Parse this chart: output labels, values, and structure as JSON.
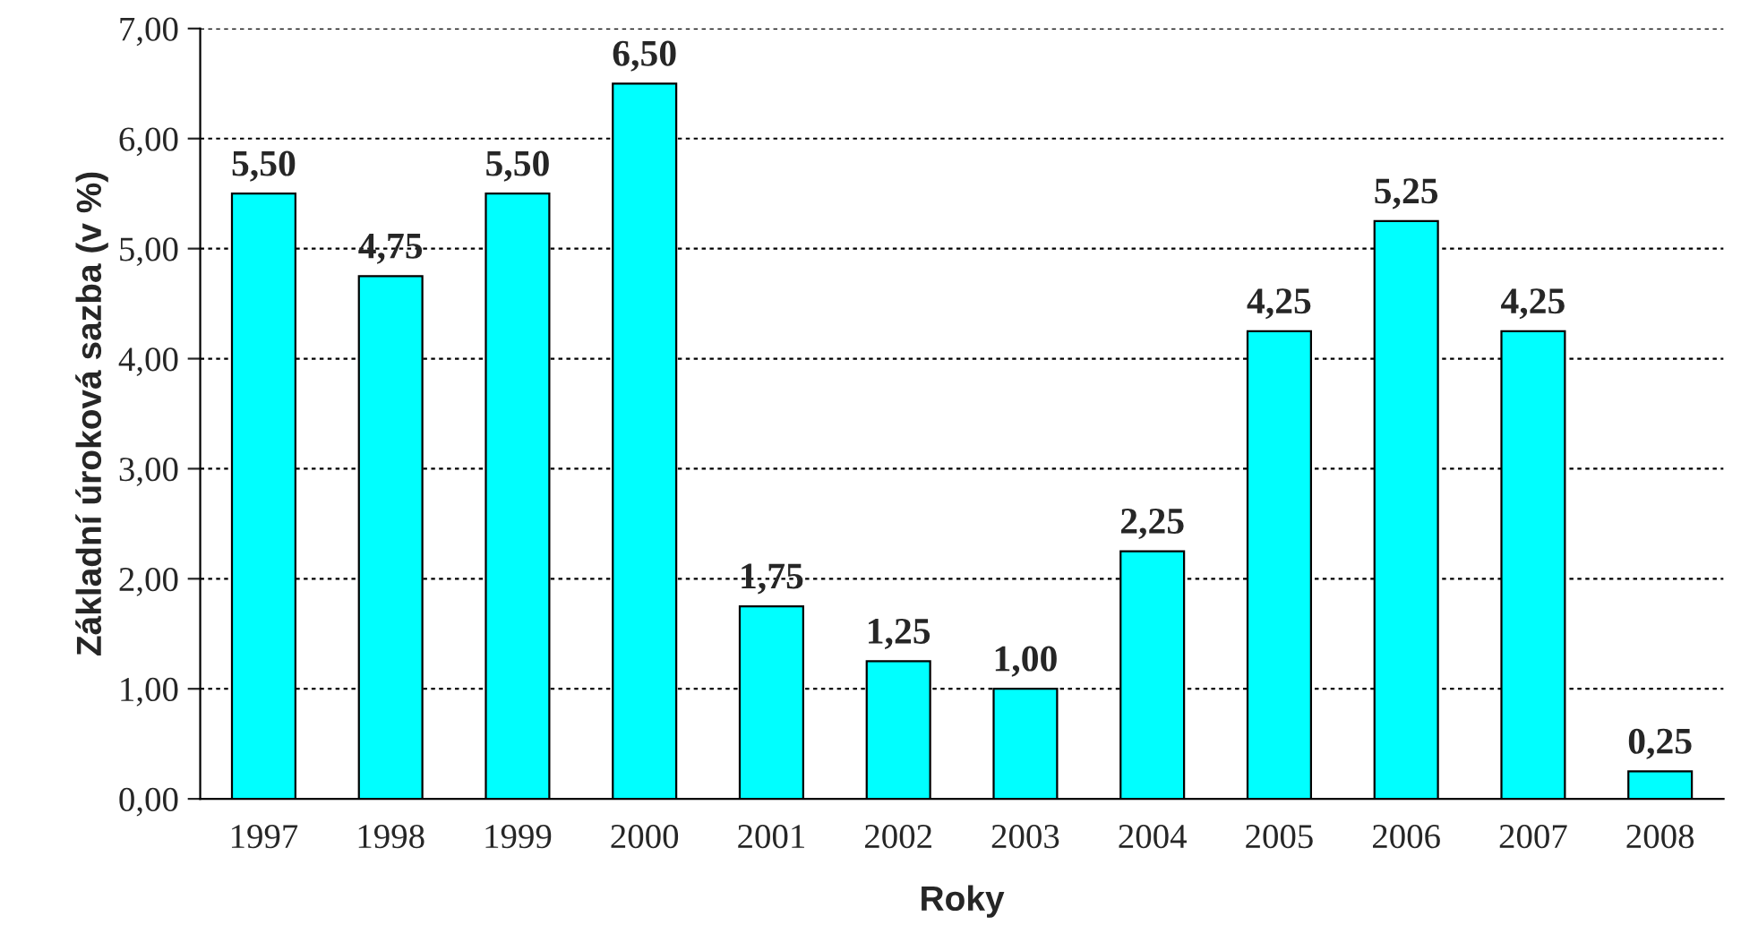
{
  "chart_data": {
    "type": "bar",
    "xlabel": "Roky",
    "ylabel": "Základní úroková sazba (v %)",
    "categories": [
      "1997",
      "1998",
      "1999",
      "2000",
      "2001",
      "2002",
      "2003",
      "2004",
      "2005",
      "2006",
      "2007",
      "2008"
    ],
    "values": [
      5.5,
      4.75,
      5.5,
      6.5,
      1.75,
      1.25,
      1.0,
      2.25,
      4.25,
      5.25,
      4.25,
      0.25
    ],
    "value_labels": [
      "5,50",
      "4,75",
      "5,50",
      "6,50",
      "1,75",
      "1,25",
      "1,00",
      "2,25",
      "4,25",
      "5,25",
      "4,25",
      "0,25"
    ],
    "color": "#00ffff",
    "ylim": [
      0,
      7
    ],
    "yticks": [
      {
        "value": 0,
        "label": "0,00"
      },
      {
        "value": 1,
        "label": "1,00"
      },
      {
        "value": 2,
        "label": "2,00"
      },
      {
        "value": 3,
        "label": "3,00"
      },
      {
        "value": 4,
        "label": "4,00"
      },
      {
        "value": 5,
        "label": "5,00"
      },
      {
        "value": 6,
        "label": "6,00"
      },
      {
        "value": 7,
        "label": "7,00"
      }
    ],
    "grid": "y"
  }
}
